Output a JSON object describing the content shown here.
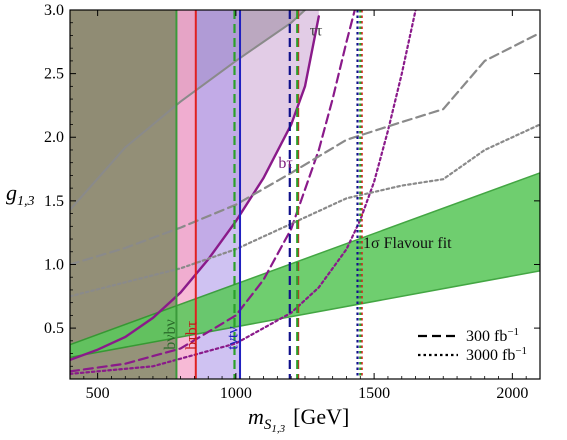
{
  "chart_data": {
    "type": "line",
    "xlabel_main": "m",
    "xlabel_sub": "S",
    "xlabel_subsub": "1,3",
    "xlabel_unit": "[GeV]",
    "ylabel_main": "g",
    "ylabel_sub": "1,3",
    "xlim": [
      400,
      2100
    ],
    "ylim": [
      0.1,
      3.0
    ],
    "x_ticks": [
      500,
      1000,
      1500,
      2000
    ],
    "y_ticks": [
      0.5,
      1.0,
      1.5,
      2.0,
      2.5,
      3.0
    ],
    "x_tick_labels": [
      "500",
      "1000",
      "1500",
      "2000"
    ],
    "y_tick_labels": [
      "0.5",
      "1.0",
      "1.5",
      "2.0",
      "2.5",
      "3.0"
    ],
    "regions": [
      {
        "name": "ττ",
        "color": "#c8a8d0",
        "upper": [
          [
            400,
            3.0
          ],
          [
            1250,
            3.0
          ]
        ],
        "lower": [
          [
            400,
            1.43
          ],
          [
            600,
            1.92
          ],
          [
            800,
            2.28
          ],
          [
            1000,
            2.6
          ],
          [
            1200,
            2.9
          ],
          [
            1250,
            3.0
          ]
        ]
      },
      {
        "name": "bτ",
        "color": "#b8a0e0"
      },
      {
        "name": "bνbν",
        "color": "#8a8f66",
        "x_max": 785
      },
      {
        "name": "bτbτ",
        "color": "#f0a0c0",
        "x_min": 785,
        "x_max": 855
      },
      {
        "name": "tνtν",
        "color": "#c0c0f0",
        "x_min": 855,
        "x_max": 1015
      }
    ],
    "vertical_lines": [
      {
        "label": "bνbν",
        "x": 785,
        "color": "#3a9a3a",
        "style": "solid"
      },
      {
        "label": "bτbτ",
        "x": 855,
        "color": "#e02020",
        "style": "solid"
      },
      {
        "label": "tνtν",
        "x": 1015,
        "color": "#2020c0",
        "style": "solid"
      },
      {
        "x": 995,
        "color": "#2aa02a",
        "style": "dashed"
      },
      {
        "x": 1195,
        "color": "#10108a",
        "style": "dashed"
      },
      {
        "x": 1225,
        "color": "#e02020",
        "style": "dashed"
      },
      {
        "x": 1222,
        "color": "#2aa02a",
        "style": "dashed"
      },
      {
        "x": 1440,
        "color": "#10108a",
        "style": "dotted"
      },
      {
        "x": 1455,
        "color": "#e02020",
        "style": "dotted"
      },
      {
        "x": 1450,
        "color": "#2aa02a",
        "style": "dotted"
      }
    ],
    "series": [
      {
        "name": "ττ",
        "color": "#8a8a8a",
        "style": "solid",
        "x": [
          400,
          600,
          800,
          1000,
          1200,
          1250
        ],
        "y": [
          1.43,
          1.92,
          2.28,
          2.6,
          2.9,
          3.0
        ]
      },
      {
        "name": "bτ",
        "color": "#8a1a8a",
        "style": "solid",
        "x": [
          400,
          500,
          600,
          700,
          800,
          900,
          1000,
          1100,
          1200,
          1250,
          1300
        ],
        "y": [
          0.25,
          0.33,
          0.43,
          0.58,
          0.78,
          1.04,
          1.34,
          1.68,
          2.1,
          2.4,
          2.95
        ]
      },
      {
        "color": "#8a1a8a",
        "style": "dashed",
        "x": [
          400,
          600,
          800,
          1000,
          1100,
          1200,
          1300,
          1350,
          1400,
          1430
        ],
        "y": [
          0.16,
          0.22,
          0.34,
          0.6,
          0.88,
          1.28,
          1.9,
          2.3,
          2.75,
          3.0
        ]
      },
      {
        "color": "#8a1a8a",
        "style": "dotted",
        "x": [
          400,
          700,
          1000,
          1200,
          1300,
          1400,
          1450,
          1500,
          1550,
          1600,
          1650
        ],
        "y": [
          0.14,
          0.2,
          0.38,
          0.62,
          0.82,
          1.12,
          1.35,
          1.65,
          2.05,
          2.5,
          3.0
        ]
      },
      {
        "color": "#8a8a8a",
        "style": "dashed",
        "x": [
          400,
          600,
          800,
          1000,
          1200,
          1400,
          1600,
          1750,
          1900,
          2100
        ],
        "y": [
          1.0,
          1.13,
          1.29,
          1.47,
          1.72,
          1.98,
          2.12,
          2.22,
          2.6,
          2.82
        ]
      },
      {
        "color": "#8a8a8a",
        "style": "dotted",
        "x": [
          400,
          600,
          800,
          1000,
          1200,
          1400,
          1600,
          1750,
          1900,
          2100
        ],
        "y": [
          0.75,
          0.86,
          0.97,
          1.12,
          1.32,
          1.52,
          1.62,
          1.67,
          1.9,
          2.1
        ]
      }
    ],
    "band": {
      "name": "1σ Flavour fit",
      "color": "#5cc85c",
      "edge": "#2a9a2a",
      "x": [
        400,
        2100
      ],
      "lower": [
        0.27,
        0.95
      ],
      "upper": [
        0.37,
        1.72
      ]
    },
    "annotations": [
      {
        "text": "ττ",
        "x": 1290,
        "y": 2.8
      },
      {
        "text": "bτ",
        "x": 1180,
        "y": 1.76
      },
      {
        "text": "1σ Flavour fit",
        "x": 1620,
        "y": 1.13
      },
      {
        "text": "bνbν",
        "x": 780,
        "y": 0.33,
        "rotate": -90
      },
      {
        "text": "bτbτ",
        "x": 857,
        "y": 0.33,
        "rotate": -90
      },
      {
        "text": "tνtν",
        "x": 1005,
        "y": 0.33,
        "rotate": -90
      }
    ],
    "legend": {
      "position": "bottom-right",
      "entries": [
        {
          "label": "300 fb",
          "sup": "−1",
          "style": "dashed"
        },
        {
          "label": "3000 fb",
          "sup": "−1",
          "style": "dotted"
        }
      ]
    },
    "grid": false
  }
}
